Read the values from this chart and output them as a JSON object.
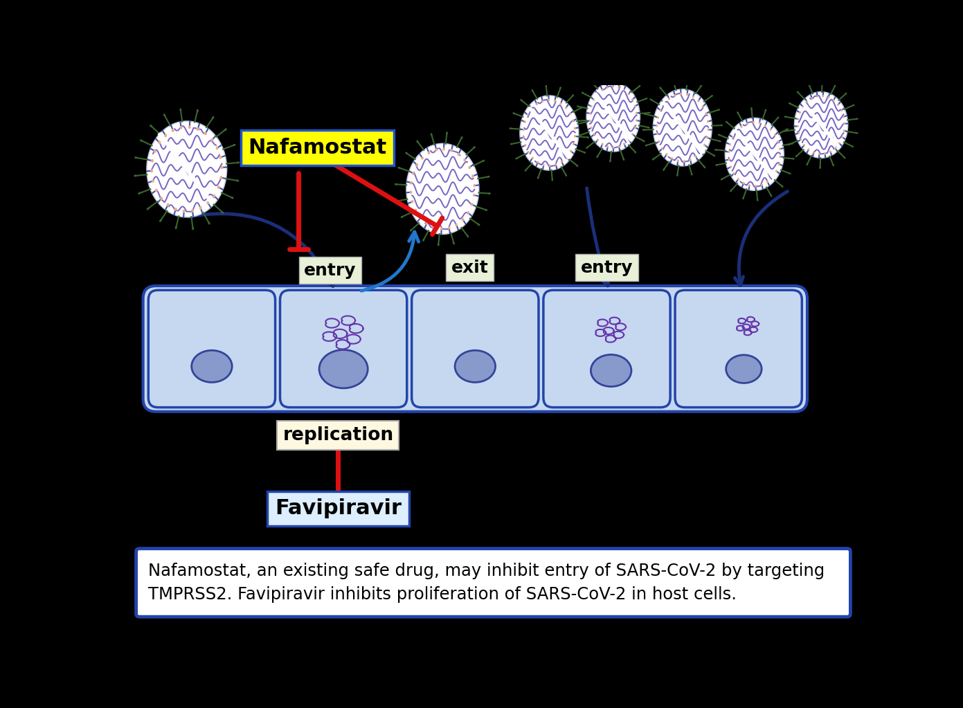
{
  "background_color": "#000000",
  "caption_text": "Nafamostat, an existing safe drug, may inhibit entry of SARS-CoV-2 by targeting\nTMPRSS2. Favipiravir inhibits proliferation of SARS-CoV-2 in host cells.",
  "nafamostat_label": "Nafamostat",
  "favipiravir_label": "Favipiravir",
  "entry_label": "entry",
  "exit_label": "exit",
  "entry2_label": "entry",
  "replication_label": "replication",
  "cell_color": "#c5d8f0",
  "cell_border_color": "#2244aa",
  "nucleus_color": "#8899cc",
  "nucleus_border": "#334499",
  "caption_box_color": "#ffffff",
  "caption_border_color": "#2244aa",
  "nafamostat_box_color": "#ffff00",
  "nafamostat_box_border": "#2255cc",
  "label_box_color": "#e8f0d8",
  "label_box_border": "#aaaaaa",
  "virus_body_color": "#ffffff",
  "virus_spike_color": "#3a6630",
  "virus_spike_tip_color": "#3a6630",
  "virus_inner_color": "#6655bb",
  "virus_ring_dot_color": "#f0aa88",
  "virus_ring_line_color": "#3355aa",
  "rna_color": "#6633aa",
  "dark_blue_arrow": "#1a2f7a",
  "blue_arrow": "#2277cc",
  "red_inhibit": "#dd1111",
  "favipiravir_box_color": "#ddeeff",
  "favipiravir_box_border": "#2244aa",
  "replication_box_color": "#fff8e0",
  "replication_box_border": "#aaaaaa"
}
